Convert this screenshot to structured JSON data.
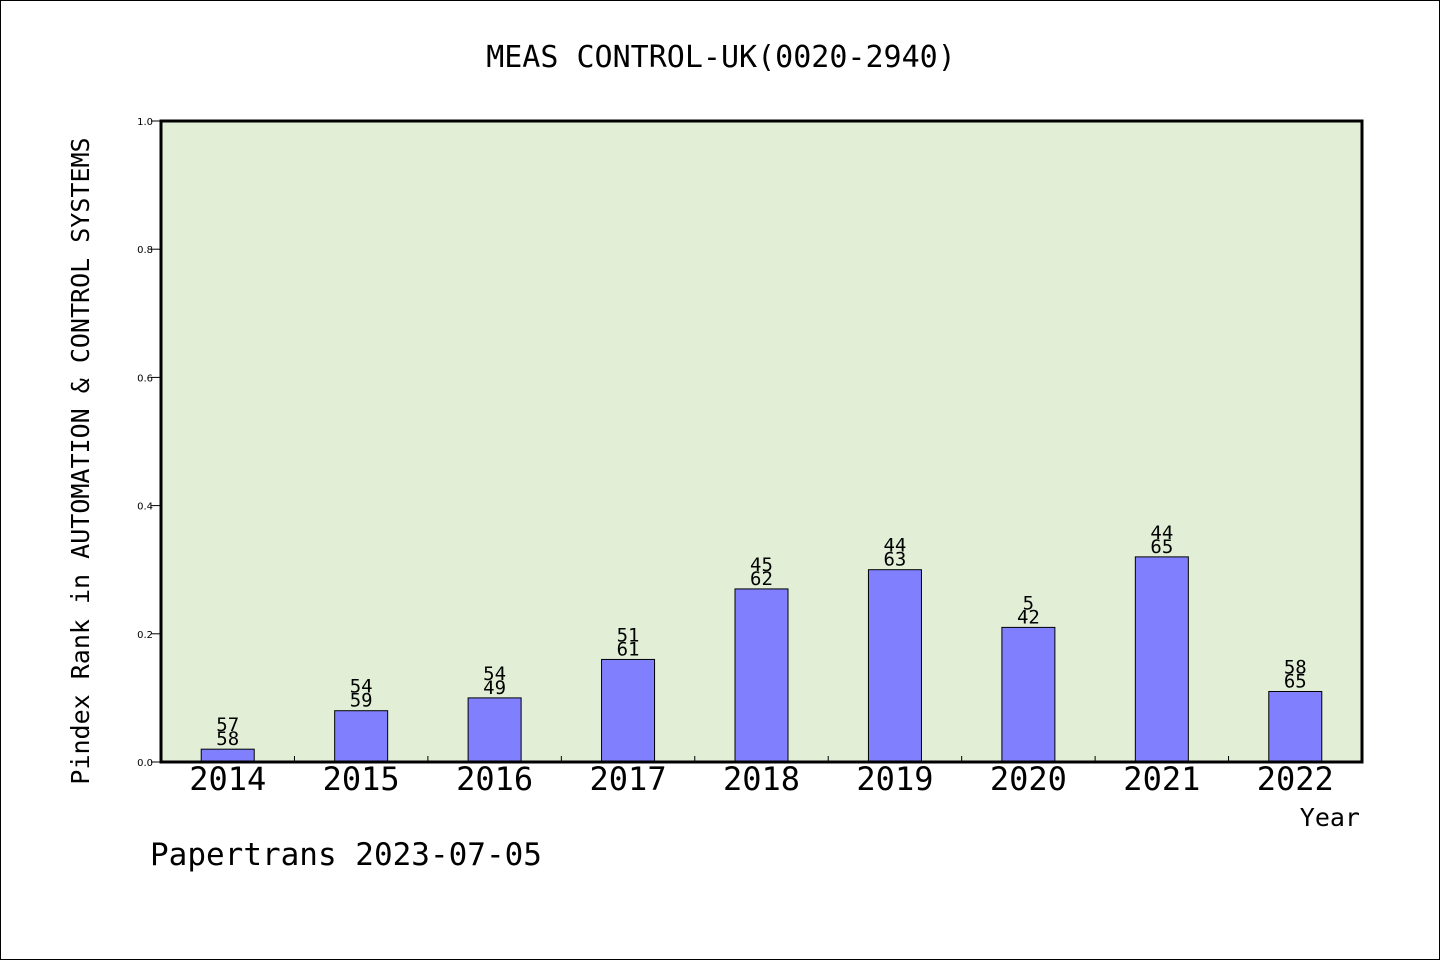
{
  "chart_data": {
    "type": "bar",
    "title": "MEAS CONTROL-UK(0020-2940)",
    "xlabel": "Year",
    "ylabel": "Pindex Rank in AUTOMATION & CONTROL SYSTEMS",
    "ylim": [
      0.0,
      1.0
    ],
    "yticks": [
      "0.0",
      "0.2",
      "0.4",
      "0.6",
      "0.8",
      "1.0"
    ],
    "categories": [
      "2014",
      "2015",
      "2016",
      "2017",
      "2018",
      "2019",
      "2020",
      "2021",
      "2022"
    ],
    "values": [
      0.02,
      0.08,
      0.1,
      0.16,
      0.27,
      0.3,
      0.21,
      0.32,
      0.11
    ],
    "labels_top": [
      "57",
      "54",
      "54",
      "51",
      "45",
      "44",
      "5",
      "44",
      "58"
    ],
    "labels_bottom": [
      "58",
      "59",
      "49",
      "61",
      "62",
      "63",
      "42",
      "65",
      "65"
    ],
    "grid": false,
    "plot_background": "#e2efd6",
    "bar_color": "#8080ff"
  },
  "footer": {
    "text": "Papertrans 2023-07-05"
  }
}
